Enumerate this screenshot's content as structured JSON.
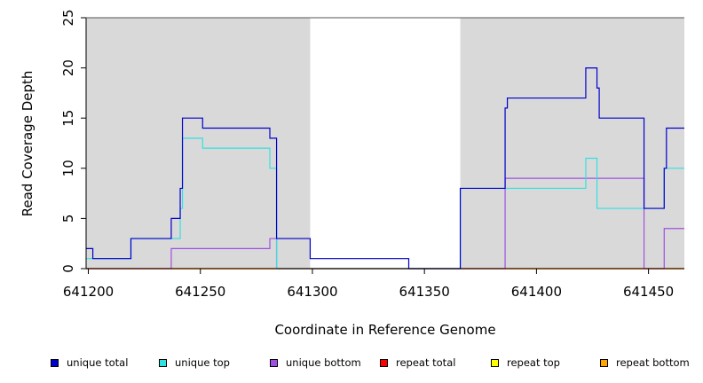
{
  "chart_data": {
    "type": "line",
    "title": "",
    "xlabel": "Coordinate in Reference Genome",
    "ylabel": "Read Coverage Depth",
    "xlim": [
      641199,
      641466
    ],
    "ylim": [
      0,
      25
    ],
    "xticks": [
      641200,
      641250,
      641300,
      641350,
      641400,
      641450
    ],
    "yticks": [
      0,
      5,
      10,
      15,
      20,
      25
    ],
    "grid": false,
    "shaded_regions": [
      [
        641199,
        641299
      ],
      [
        641366,
        641466
      ]
    ],
    "shade_color": "#d9d9d9",
    "legend_position": "bottom",
    "series": [
      {
        "name": "unique total",
        "color": "#0000cc",
        "step": true,
        "points": [
          [
            641199,
            2
          ],
          [
            641202,
            1
          ],
          [
            641219,
            3
          ],
          [
            641237,
            5
          ],
          [
            641241,
            8
          ],
          [
            641242,
            15
          ],
          [
            641251,
            14
          ],
          [
            641281,
            13
          ],
          [
            641284,
            3
          ],
          [
            641299,
            1
          ],
          [
            641343,
            0
          ],
          [
            641366,
            8
          ],
          [
            641386,
            16
          ],
          [
            641387,
            17
          ],
          [
            641422,
            20
          ],
          [
            641427,
            18
          ],
          [
            641428,
            15
          ],
          [
            641448,
            6
          ],
          [
            641457,
            10
          ],
          [
            641458,
            14
          ],
          [
            641466,
            14
          ]
        ]
      },
      {
        "name": "unique top",
        "color": "#33e0e0",
        "step": true,
        "points": [
          [
            641199,
            1
          ],
          [
            641219,
            3
          ],
          [
            641237,
            3
          ],
          [
            641241,
            6
          ],
          [
            641242,
            13
          ],
          [
            641251,
            12
          ],
          [
            641281,
            10
          ],
          [
            641284,
            0
          ],
          [
            641366,
            8
          ],
          [
            641386,
            8
          ],
          [
            641422,
            11
          ],
          [
            641427,
            6
          ],
          [
            641448,
            6
          ],
          [
            641457,
            10
          ],
          [
            641466,
            10
          ]
        ]
      },
      {
        "name": "unique bottom",
        "color": "#a050e0",
        "step": true,
        "points": [
          [
            641199,
            0
          ],
          [
            641237,
            2
          ],
          [
            641281,
            3
          ],
          [
            641284,
            0
          ],
          [
            641386,
            9
          ],
          [
            641448,
            0
          ],
          [
            641457,
            4
          ],
          [
            641466,
            4
          ]
        ]
      },
      {
        "name": "repeat total",
        "color": "#ff0000",
        "step": true,
        "points": [
          [
            641199,
            0
          ],
          [
            641466,
            0
          ]
        ]
      },
      {
        "name": "repeat top",
        "color": "#ffff00",
        "step": true,
        "points": [
          [
            641199,
            0
          ],
          [
            641466,
            0
          ]
        ]
      },
      {
        "name": "repeat bottom",
        "color": "#ffa500",
        "step": true,
        "points": [
          [
            641199,
            0
          ],
          [
            641466,
            0
          ]
        ]
      }
    ]
  }
}
